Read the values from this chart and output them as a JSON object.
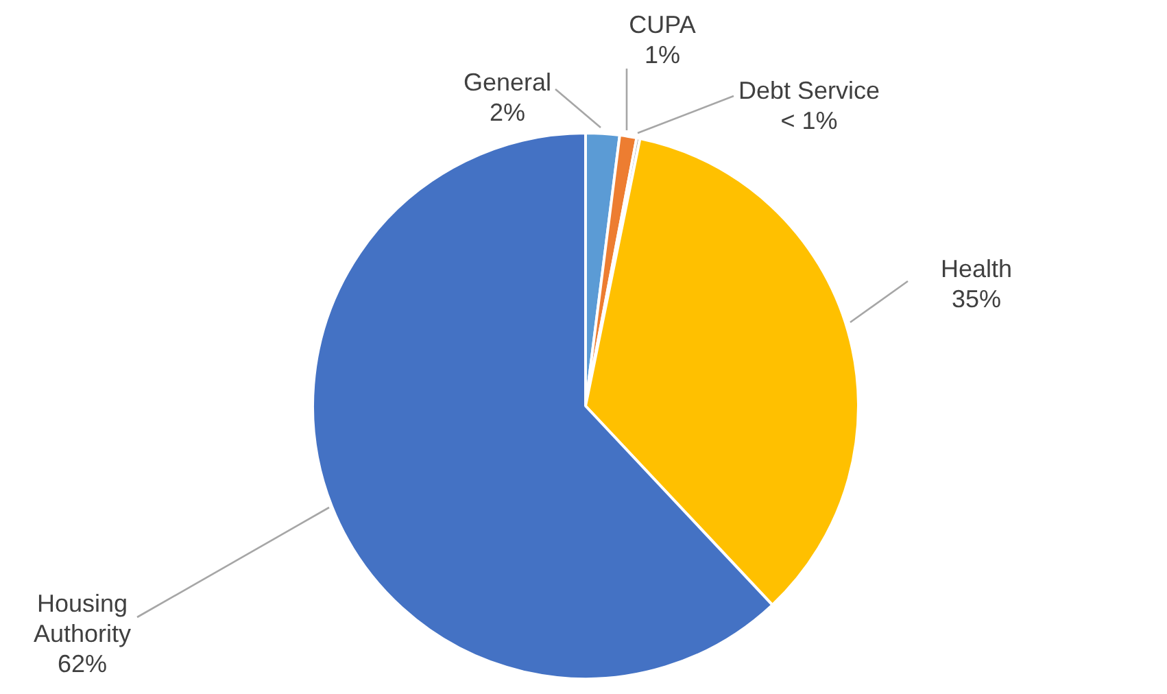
{
  "chart_data": {
    "type": "pie",
    "categories": [
      "General",
      "CUPA",
      "Debt Service",
      "Health",
      "Housing Authority"
    ],
    "values": [
      2,
      1,
      0.2,
      34.8,
      62
    ],
    "value_labels": [
      "2%",
      "1%",
      "< 1%",
      "35%",
      "62%"
    ],
    "colors": [
      "#5b9bd5",
      "#ed7d31",
      "#a5a5a5",
      "#ffc000",
      "#4472c4"
    ],
    "legend": false
  }
}
